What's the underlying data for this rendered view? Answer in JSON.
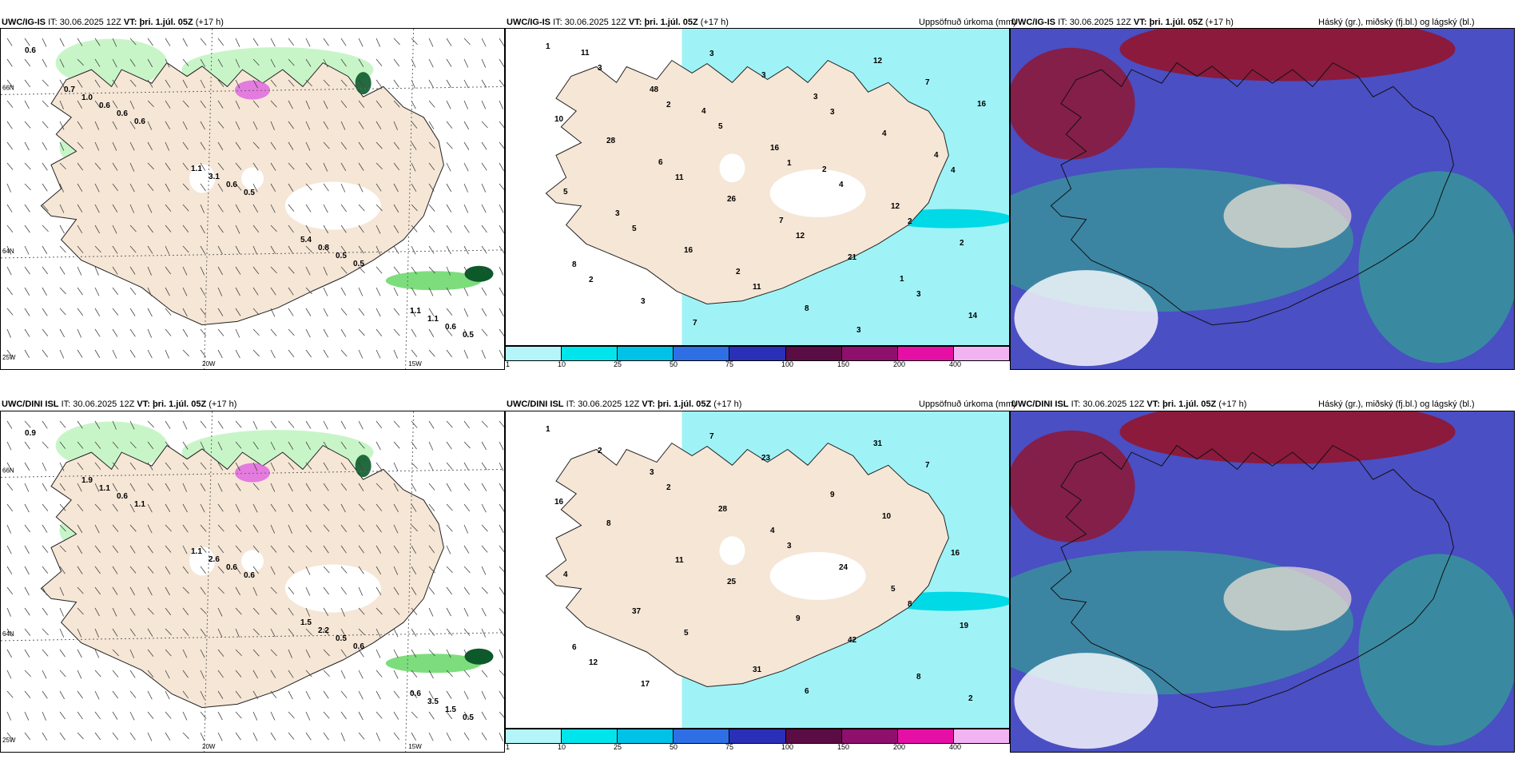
{
  "panels": [
    {
      "id": "ig-wind",
      "model": "UWC/IG-IS",
      "it_label": "IT:",
      "it_value": "30.06.2025 12Z",
      "vt_label": "VT:",
      "vt_value": "þri. 1.júl. 05Z",
      "lead": "(+17 h)",
      "right_title": ""
    },
    {
      "id": "ig-precip",
      "model": "UWC/IG-IS",
      "it_label": "IT:",
      "it_value": "30.06.2025 12Z",
      "vt_label": "VT:",
      "vt_value": "þri. 1.júl. 05Z",
      "lead": "(+17 h)",
      "right_title": "Uppsöfnuð úrkoma (mm)"
    },
    {
      "id": "ig-cloud",
      "model": "UWC/IG-IS",
      "it_label": "IT:",
      "it_value": "30.06.2025 12Z",
      "vt_label": "VT:",
      "vt_value": "þri. 1.júl. 05Z",
      "lead": "(+17 h)",
      "right_title": "Háský (gr.), miðský (fj.bl.) og lágský (bl.)"
    },
    {
      "id": "dini-wind",
      "model": "UWC/DINI ISL",
      "it_label": "IT:",
      "it_value": "30.06.2025 12Z",
      "vt_label": "VT:",
      "vt_value": "þri. 1.júl. 05Z",
      "lead": "(+17 h)",
      "right_title": ""
    },
    {
      "id": "dini-precip",
      "model": "UWC/DINI ISL",
      "it_label": "IT:",
      "it_value": "30.06.2025 12Z",
      "vt_label": "VT:",
      "vt_value": "þri. 1.júl. 05Z",
      "lead": "(+17 h)",
      "right_title": "Uppsöfnuð úrkoma (mm)"
    },
    {
      "id": "dini-cloud",
      "model": "UWC/DINI ISL",
      "it_label": "IT:",
      "it_value": "30.06.2025 12Z",
      "vt_label": "VT:",
      "vt_value": "þri. 1.júl. 05Z",
      "lead": "(+17 h)",
      "right_title": "Háský (gr.), miðský (fj.bl.) og lágský (bl.)"
    }
  ],
  "axis_labels": {
    "lon_20": "20W",
    "lon_15": "15W",
    "lon_25": "25W",
    "lat_66": "66N",
    "lat_64": "64N"
  },
  "colorbar": {
    "ticks": [
      "1",
      "10",
      "25",
      "50",
      "75",
      "100",
      "150",
      "200",
      "400"
    ],
    "colors": [
      "#b3f5f8",
      "#00e5ec",
      "#00c2e6",
      "#2f6fe6",
      "#2a2fb8",
      "#5a0d44",
      "#8e0f6c",
      "#e60fa6",
      "#f2b3f2"
    ]
  },
  "colors": {
    "land": "#f5e6d6",
    "precip_light": "#c8f5c8",
    "precip_mid": "#6fd96f",
    "precip_dark": "#0c5a2a",
    "snow_pink": "#e060e0",
    "cloud_high": "#8b1a3c",
    "cloud_mid": "#4a4fc4",
    "cloud_low": "#2fb389",
    "sea_precip": "#9ff3f6"
  },
  "wind_labels_ig": [
    "0.6",
    "0.6",
    "0.5",
    "0.5",
    "0.5",
    "0.6",
    "0.6",
    "0.5",
    "0.6",
    "0.6",
    "3.1",
    "0.8",
    "1.1",
    "1.0",
    "1.1",
    "5.4",
    "1.1",
    "0.7"
  ],
  "wind_labels_dini": [
    "0.9",
    "1.1",
    "0.6",
    "0.6",
    "0.5",
    "0.6",
    "0.6",
    "0.5",
    "1.5",
    "1.1",
    "2.6",
    "2.2",
    "3.5",
    "1.9",
    "1.1",
    "1.5",
    "0.6"
  ],
  "precip_labels_ig": [
    "1",
    "2",
    "1",
    "2",
    "2",
    "3",
    "3",
    "4",
    "5",
    "11",
    "12",
    "10",
    "11",
    "12",
    "3",
    "3",
    "5",
    "4",
    "2",
    "3",
    "3",
    "4",
    "5",
    "16",
    "8",
    "7",
    "28",
    "26",
    "21",
    "14",
    "48",
    "16",
    "12",
    "8",
    "7",
    "3",
    "4",
    "3",
    "2",
    "3",
    "16",
    "6",
    "7",
    "1",
    "11",
    "4",
    "2"
  ],
  "precip_labels_dini": [
    "1",
    "2",
    "3",
    "8",
    "12",
    "7",
    "9",
    "16",
    "37",
    "31",
    "31",
    "16",
    "11",
    "9",
    "8",
    "2",
    "28",
    "24",
    "19",
    "17",
    "23",
    "10",
    "4",
    "5",
    "6",
    "7",
    "8",
    "25",
    "42",
    "2",
    "3",
    "4",
    "5",
    "6"
  ]
}
